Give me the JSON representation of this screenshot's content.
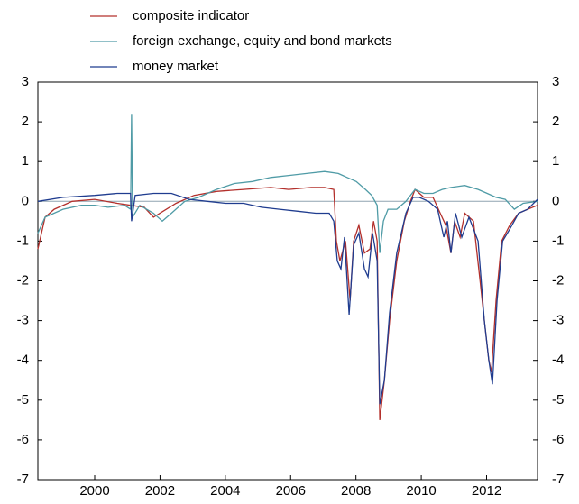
{
  "chart_data": {
    "type": "line",
    "xlim": [
      1998.26,
      2013.56
    ],
    "xticks": [
      2000,
      2002,
      2004,
      2006,
      2008,
      2010,
      2012
    ],
    "ylim": [
      -7,
      3
    ],
    "yticks": [
      3,
      2,
      1,
      0,
      -1,
      -2,
      -3,
      -4,
      -5,
      -6,
      -7
    ],
    "y2lim": [
      -7,
      3
    ],
    "y2ticks": [
      3,
      2,
      1,
      0,
      -1,
      -2,
      -3,
      -4,
      -5,
      -6,
      -7
    ],
    "zero_line": true,
    "legend": "top",
    "series": [
      {
        "name": "composite indicator",
        "color": "#b3302c",
        "x": [
          1998.26,
          1998.48,
          1998.76,
          1999.31,
          2000.0,
          2000.69,
          2001.1,
          2001.52,
          2001.8,
          2002.49,
          2003.04,
          2003.73,
          2004.56,
          2005.39,
          2005.94,
          2006.63,
          2007.04,
          2007.32,
          2007.4,
          2007.51,
          2007.68,
          2007.82,
          2007.93,
          2008.09,
          2008.26,
          2008.43,
          2008.54,
          2008.65,
          2008.73,
          2008.87,
          2009.03,
          2009.25,
          2009.48,
          2009.67,
          2009.81,
          2010.08,
          2010.36,
          2010.58,
          2010.75,
          2010.91,
          2011.02,
          2011.19,
          2011.33,
          2011.6,
          2011.8,
          2011.93,
          2012.07,
          2012.15,
          2012.29,
          2012.46,
          2012.71,
          2012.98,
          2013.26,
          2013.56
        ],
        "values": [
          -1.2,
          -0.4,
          -0.2,
          0,
          0.05,
          -0.05,
          -0.1,
          -0.15,
          -0.4,
          -0.05,
          0.15,
          0.25,
          0.3,
          0.35,
          0.3,
          0.35,
          0.35,
          0.3,
          -1.0,
          -1.5,
          -1.0,
          -2.5,
          -1.0,
          -0.6,
          -1.3,
          -1.2,
          -0.5,
          -1.0,
          -5.5,
          -4.5,
          -3.0,
          -1.5,
          -0.5,
          0,
          0.3,
          0.1,
          0.1,
          -0.3,
          -0.6,
          -1.3,
          -0.5,
          -0.9,
          -0.3,
          -0.5,
          -2.0,
          -3.0,
          -4.0,
          -4.3,
          -2.5,
          -1.0,
          -0.6,
          -0.3,
          -0.2,
          -0.1
        ]
      },
      {
        "name": "foreign exchange, equity and bond markets",
        "color": "#4f9ba6",
        "x": [
          1998.26,
          1998.48,
          1999.03,
          1999.59,
          2000.0,
          2000.41,
          2000.91,
          2001.1,
          2001.13,
          2001.16,
          2001.38,
          2001.8,
          2002.07,
          2002.35,
          2002.76,
          2003.18,
          2003.73,
          2004.28,
          2004.83,
          2005.39,
          2005.94,
          2006.49,
          2007.04,
          2007.46,
          2007.73,
          2008.01,
          2008.29,
          2008.48,
          2008.65,
          2008.73,
          2008.84,
          2008.98,
          2009.25,
          2009.53,
          2009.81,
          2010.08,
          2010.36,
          2010.64,
          2010.91,
          2011.33,
          2011.74,
          2012.02,
          2012.29,
          2012.57,
          2012.85,
          2013.12,
          2013.56
        ],
        "values": [
          -0.8,
          -0.4,
          -0.2,
          -0.1,
          -0.1,
          -0.15,
          -0.1,
          -0.2,
          2.2,
          -0.4,
          -0.1,
          -0.3,
          -0.5,
          -0.3,
          0,
          0.1,
          0.3,
          0.45,
          0.5,
          0.6,
          0.65,
          0.7,
          0.75,
          0.7,
          0.6,
          0.5,
          0.3,
          0.15,
          -0.1,
          -1.3,
          -0.5,
          -0.2,
          -0.2,
          0,
          0.3,
          0.2,
          0.2,
          0.3,
          0.35,
          0.4,
          0.3,
          0.2,
          0.1,
          0.05,
          -0.2,
          -0.05,
          0
        ]
      },
      {
        "name": "money market",
        "color": "#1f3c8f",
        "x": [
          1998.26,
          1999.03,
          2000.0,
          2000.69,
          2001.1,
          2001.13,
          2001.24,
          2001.8,
          2002.35,
          2002.9,
          2003.45,
          2004.01,
          2004.56,
          2005.11,
          2005.66,
          2006.22,
          2006.77,
          2007.18,
          2007.32,
          2007.43,
          2007.54,
          2007.65,
          2007.79,
          2007.93,
          2008.09,
          2008.26,
          2008.37,
          2008.51,
          2008.65,
          2008.73,
          2008.87,
          2009.03,
          2009.25,
          2009.53,
          2009.75,
          2009.94,
          2010.22,
          2010.5,
          2010.69,
          2010.8,
          2010.91,
          2011.05,
          2011.24,
          2011.46,
          2011.74,
          2011.93,
          2012.07,
          2012.18,
          2012.32,
          2012.49,
          2012.71,
          2012.98,
          2013.26,
          2013.56
        ],
        "values": [
          0,
          0.1,
          0.15,
          0.2,
          0.2,
          -0.5,
          0.15,
          0.2,
          0.2,
          0.05,
          0,
          -0.05,
          -0.05,
          -0.15,
          -0.2,
          -0.25,
          -0.3,
          -0.3,
          -0.5,
          -1.5,
          -1.7,
          -0.9,
          -2.85,
          -1.1,
          -0.8,
          -1.7,
          -1.9,
          -0.8,
          -1.5,
          -5.1,
          -4.5,
          -2.8,
          -1.3,
          -0.3,
          0.1,
          0.1,
          0,
          -0.2,
          -0.9,
          -0.5,
          -1.3,
          -0.3,
          -0.9,
          -0.4,
          -1.0,
          -3.0,
          -4.0,
          -4.6,
          -2.5,
          -1.0,
          -0.7,
          -0.3,
          -0.2,
          0.05
        ]
      }
    ]
  }
}
